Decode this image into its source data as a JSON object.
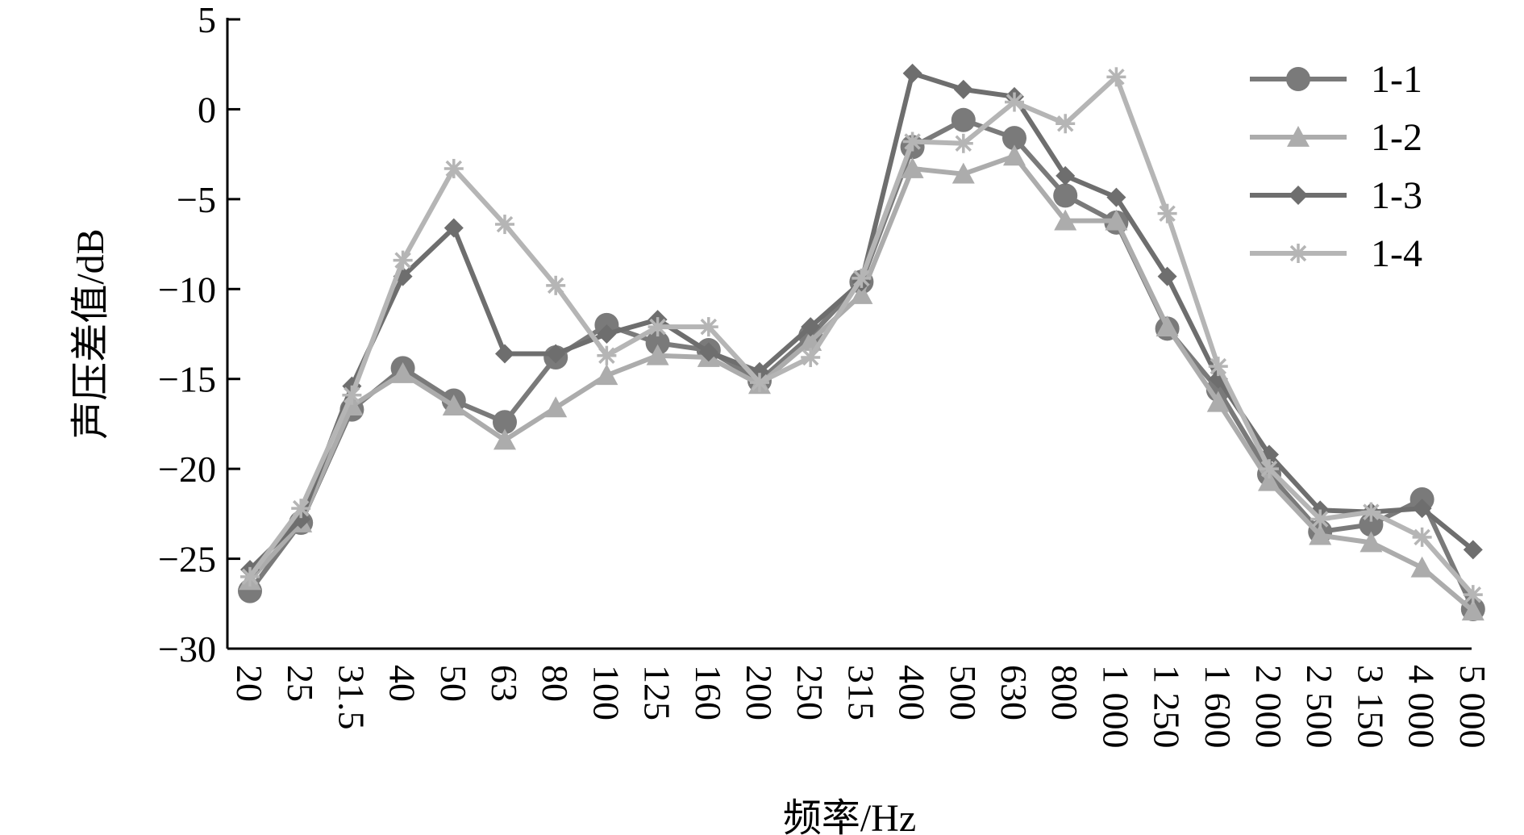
{
  "chart_data": {
    "type": "line",
    "xlabel": "频率/Hz",
    "ylabel": "声压差值/dB",
    "ylim": [
      -30,
      5
    ],
    "yticks": [
      5,
      0,
      -5,
      -10,
      -15,
      -20,
      -25,
      -30
    ],
    "ytick_labels": [
      "5",
      "0",
      "−5",
      "−10",
      "−15",
      "−20",
      "−25",
      "−30"
    ],
    "categories": [
      "20",
      "25",
      "31.5",
      "40",
      "50",
      "63",
      "80",
      "100",
      "125",
      "160",
      "200",
      "250",
      "315",
      "400",
      "500",
      "630",
      "800",
      "1 000",
      "1 250",
      "1 600",
      "2 000",
      "2 500",
      "3 150",
      "4 000",
      "5 000"
    ],
    "grid": false,
    "legend_position": "top-right",
    "series": [
      {
        "name": "1-1",
        "marker": "circle",
        "color": "#7a7a7a",
        "values": [
          -26.8,
          -23.0,
          -16.7,
          -14.4,
          -16.2,
          -17.4,
          -13.8,
          -12.0,
          -13.0,
          -13.4,
          -15.1,
          -12.6,
          -9.6,
          -2.1,
          -0.6,
          -1.6,
          -4.8,
          -6.3,
          -12.2,
          -15.6,
          -20.3,
          -23.5,
          -23.1,
          -21.7,
          -27.8
        ]
      },
      {
        "name": "1-2",
        "marker": "triangle",
        "color": "#acacac",
        "values": [
          -26.2,
          -23.0,
          -16.5,
          -14.7,
          -16.5,
          -18.4,
          -16.6,
          -14.8,
          -13.7,
          -13.8,
          -15.3,
          -12.9,
          -10.3,
          -3.3,
          -3.6,
          -2.6,
          -6.2,
          -6.2,
          -12.1,
          -16.3,
          -20.7,
          -23.7,
          -24.1,
          -25.5,
          -27.9
        ]
      },
      {
        "name": "1-3",
        "marker": "diamond",
        "color": "#6e6e6e",
        "values": [
          -25.6,
          -22.8,
          -15.4,
          -9.3,
          -6.6,
          -13.6,
          -13.6,
          -12.5,
          -11.7,
          -13.5,
          -14.6,
          -12.1,
          -9.6,
          2.0,
          1.1,
          0.7,
          -3.7,
          -4.9,
          -9.3,
          -15.0,
          -19.2,
          -22.3,
          -22.4,
          -22.2,
          -24.5
        ]
      },
      {
        "name": "1-4",
        "marker": "asterisk",
        "color": "#b5b5b5",
        "values": [
          -26.0,
          -22.2,
          -15.9,
          -8.4,
          -3.3,
          -6.4,
          -9.8,
          -13.7,
          -12.1,
          -12.1,
          -15.2,
          -13.8,
          -9.4,
          -1.8,
          -1.9,
          0.4,
          -0.8,
          1.8,
          -5.8,
          -14.3,
          -20.0,
          -22.8,
          -22.4,
          -23.8,
          -27.0
        ]
      }
    ]
  }
}
